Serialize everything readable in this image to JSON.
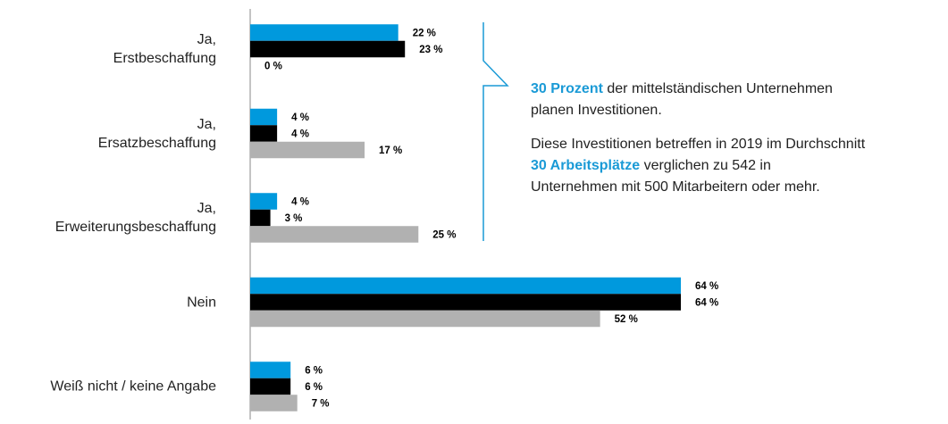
{
  "chart_data": {
    "type": "bar",
    "orientation": "horizontal",
    "categories": [
      "Ja,\nErstbeschaffung",
      "Ja,\nErsatzbeschaffung",
      "Ja,\nErweiterungsbeschaffung",
      "Nein",
      "Weiß nicht / keine Angabe"
    ],
    "series": [
      {
        "color": "#0099dd",
        "values": [
          22,
          4,
          4,
          64,
          6
        ],
        "value_labels": [
          "22 %",
          "4 %",
          "4 %",
          "64 %",
          "6 %"
        ]
      },
      {
        "color": "#000000",
        "values": [
          23,
          4,
          3,
          64,
          6
        ],
        "value_labels": [
          "23 %",
          "4 %",
          "3 %",
          "64 %",
          "6 %"
        ]
      },
      {
        "color": "#b1b1b1",
        "values": [
          0,
          17,
          25,
          52,
          7
        ],
        "value_labels": [
          "0 %",
          "17 %",
          "25 %",
          "52 %",
          "7 %"
        ]
      }
    ],
    "highlight_color": "#1a9ad6",
    "annotation": [
      [
        {
          "text": "30 Prozent",
          "highlight": true
        },
        {
          "text": " der mittelständischen Unternehmen\nplanen Investitionen."
        }
      ],
      [
        {
          "text": "Diese Investitionen betreffen in 2019 im Durchschnitt\n"
        },
        {
          "text": "30 Arbeitsplätze",
          "highlight": true
        },
        {
          "text": " verglichen zu 542 in\nUnternehmen mit 500 Mitarbeitern oder mehr."
        }
      ]
    ]
  }
}
